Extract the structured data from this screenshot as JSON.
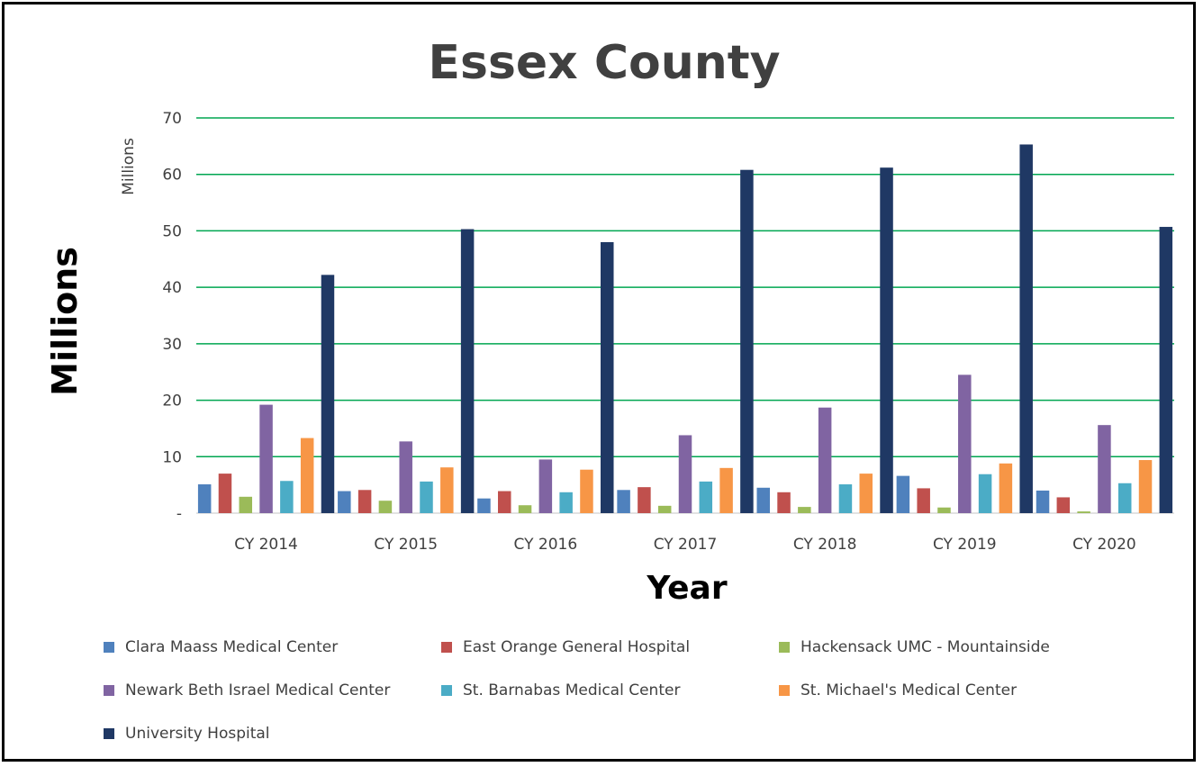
{
  "chart_data": {
    "type": "bar",
    "title": "Essex County",
    "xlabel": "Year",
    "ylabel": "Millions",
    "units_label": "Millions",
    "categories": [
      "CY 2014",
      "CY 2015",
      "CY 2016",
      "CY 2017",
      "CY 2018",
      "CY 2019",
      "CY 2020"
    ],
    "ylim": [
      0,
      70
    ],
    "yticks": [
      {
        "value": 0,
        "label": "-"
      },
      {
        "value": 10,
        "label": "10"
      },
      {
        "value": 20,
        "label": "20"
      },
      {
        "value": 30,
        "label": "30"
      },
      {
        "value": 40,
        "label": "40"
      },
      {
        "value": 50,
        "label": "50"
      },
      {
        "value": 60,
        "label": "60"
      },
      {
        "value": 70,
        "label": "70"
      }
    ],
    "grid": true,
    "grid_color": "#00a651",
    "legend_position": "bottom",
    "series": [
      {
        "name": "Clara Maass Medical Center",
        "color": "#4f81bd",
        "values": [
          5.1,
          3.9,
          2.6,
          4.1,
          4.5,
          6.6,
          4.0
        ]
      },
      {
        "name": "East Orange General Hospital",
        "color": "#c0504d",
        "values": [
          7.0,
          4.1,
          3.9,
          4.6,
          3.7,
          4.4,
          2.8
        ]
      },
      {
        "name": "Hackensack UMC - Mountainside",
        "color": "#9bbb59",
        "values": [
          2.9,
          2.2,
          1.4,
          1.3,
          1.1,
          1.0,
          0.3
        ]
      },
      {
        "name": "Newark Beth Israel Medical Center",
        "color": "#8064a2",
        "values": [
          19.2,
          12.7,
          9.5,
          13.8,
          18.7,
          24.5,
          15.6
        ]
      },
      {
        "name": "St. Barnabas Medical Center",
        "color": "#4bacc6",
        "values": [
          5.7,
          5.6,
          3.7,
          5.6,
          5.1,
          6.9,
          5.3
        ]
      },
      {
        "name": "St. Michael's Medical Center",
        "color": "#f79646",
        "values": [
          13.3,
          8.1,
          7.7,
          8.0,
          7.0,
          8.8,
          9.4
        ]
      },
      {
        "name": "University Hospital",
        "color": "#1f3864",
        "values": [
          42.2,
          50.3,
          48.0,
          60.8,
          61.2,
          65.3,
          50.7
        ]
      }
    ]
  }
}
